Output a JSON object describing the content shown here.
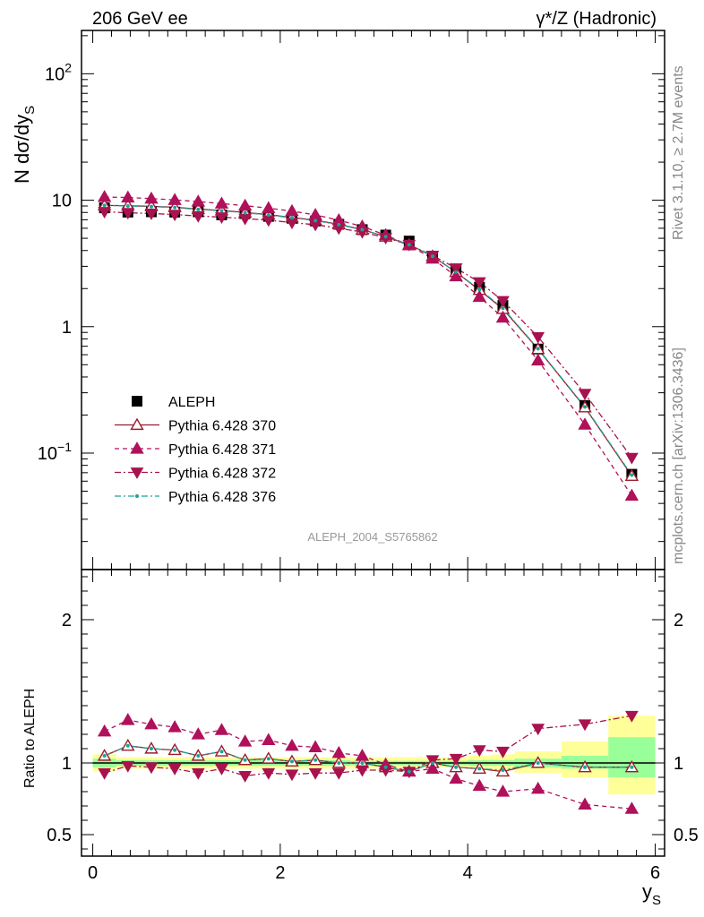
{
  "header": {
    "left": "206 GeV ee",
    "right": "γ*/Z (Hadronic)"
  },
  "side_text": {
    "rivet": "Rivet 3.1.10, ≥ 2.7M events",
    "mcplots": "mcplots.cern.ch [arXiv:1306.3436]"
  },
  "analysis_label": "ALEPH_2004_S5765862",
  "colors": {
    "data": "#000000",
    "p370": "#9b1c2a",
    "p371": "#b0115a",
    "p372": "#a8124e",
    "p376": "#1aa39b",
    "band_inner": "#99ff99",
    "band_outer": "#ffff99"
  },
  "chart_data": [
    {
      "type": "line",
      "panel": "main",
      "ylabel": "N dσ/dy",
      "ylabel_sub": "S",
      "yscale": "log",
      "ylim": [
        0.012,
        220
      ],
      "xlim": [
        -0.12,
        6.1
      ],
      "y_ticks": [
        {
          "value": 100,
          "base": "10",
          "exp": "2"
        },
        {
          "value": 10,
          "base": "10",
          "exp": ""
        },
        {
          "value": 1,
          "base": "1",
          "exp": ""
        },
        {
          "value": 0.1,
          "base": "10",
          "exp": "−1"
        }
      ],
      "legend": [
        "ALEPH",
        "Pythia 6.428 370",
        "Pythia 6.428 371",
        "Pythia 6.428 372",
        "Pythia 6.428 376"
      ],
      "x": [
        0.125,
        0.375,
        0.625,
        0.875,
        1.125,
        1.375,
        1.625,
        1.875,
        2.125,
        2.375,
        2.625,
        2.875,
        3.125,
        3.375,
        3.625,
        3.875,
        4.125,
        4.375,
        4.75,
        5.25,
        5.75
      ],
      "series": [
        {
          "name": "ALEPH",
          "values": [
            8.7,
            8.05,
            8.1,
            8.05,
            8.1,
            7.65,
            7.85,
            7.45,
            7.2,
            6.85,
            6.45,
            5.85,
            5.3,
            4.75,
            3.55,
            2.8,
            2.05,
            1.47,
            0.665,
            0.238,
            0.068
          ]
        },
        {
          "name": "Pythia 6.428 370",
          "values": [
            9.1,
            9.05,
            8.95,
            8.8,
            8.5,
            8.3,
            8.0,
            7.7,
            7.3,
            6.95,
            6.45,
            5.85,
            5.15,
            4.45,
            3.6,
            2.7,
            1.95,
            1.38,
            0.665,
            0.23,
            0.066
          ]
        },
        {
          "name": "Pythia 6.428 371",
          "values": [
            10.6,
            10.5,
            10.3,
            10.05,
            9.75,
            9.4,
            9.05,
            8.65,
            8.2,
            7.65,
            6.95,
            6.2,
            5.3,
            4.4,
            3.45,
            2.5,
            1.72,
            1.18,
            0.54,
            0.168,
            0.046
          ]
        },
        {
          "name": "Pythia 6.428 372",
          "values": [
            8.1,
            7.95,
            7.85,
            7.7,
            7.5,
            7.35,
            7.15,
            6.95,
            6.65,
            6.4,
            6.0,
            5.6,
            5.05,
            4.45,
            3.65,
            2.9,
            2.25,
            1.6,
            0.83,
            0.295,
            0.092
          ]
        },
        {
          "name": "Pythia 6.428 376",
          "values": [
            9.1,
            9.0,
            8.9,
            8.75,
            8.45,
            8.25,
            7.95,
            7.65,
            7.25,
            6.9,
            6.4,
            5.85,
            5.15,
            4.45,
            3.6,
            2.7,
            1.97,
            1.4,
            0.67,
            0.232,
            0.067
          ]
        }
      ]
    },
    {
      "type": "line",
      "panel": "ratio",
      "ylabel": "Ratio to ALEPH",
      "xlabel": "y",
      "xlabel_sub": "S",
      "xlim": [
        -0.12,
        6.1
      ],
      "ylim": [
        0.35,
        2.35
      ],
      "y_ticks": [
        "0.5",
        "1",
        "2"
      ],
      "x_ticks": [
        "0",
        "2",
        "4",
        "6"
      ],
      "bands": [
        {
          "xlo": 0.0,
          "xhi": 0.25,
          "inner": [
            0.97,
            1.03
          ],
          "outer": [
            0.94,
            1.06
          ]
        },
        {
          "xlo": 0.25,
          "xhi": 2.75,
          "inner": [
            0.98,
            1.02
          ],
          "outer": [
            0.96,
            1.04
          ]
        },
        {
          "xlo": 2.75,
          "xhi": 3.5,
          "inner": [
            0.985,
            1.015
          ],
          "outer": [
            0.96,
            1.04
          ]
        },
        {
          "xlo": 3.5,
          "xhi": 4.0,
          "inner": [
            0.985,
            1.015
          ],
          "outer": [
            0.97,
            1.04
          ]
        },
        {
          "xlo": 4.0,
          "xhi": 4.25,
          "inner": [
            0.98,
            1.02
          ],
          "outer": [
            0.96,
            1.05
          ]
        },
        {
          "xlo": 4.25,
          "xhi": 4.5,
          "inner": [
            0.98,
            1.02
          ],
          "outer": [
            0.95,
            1.06
          ]
        },
        {
          "xlo": 4.5,
          "xhi": 5.0,
          "inner": [
            0.97,
            1.03
          ],
          "outer": [
            0.93,
            1.08
          ]
        },
        {
          "xlo": 5.0,
          "xhi": 5.5,
          "inner": [
            0.96,
            1.05
          ],
          "outer": [
            0.9,
            1.15
          ]
        },
        {
          "xlo": 5.5,
          "xhi": 6.0,
          "inner": [
            0.9,
            1.18
          ],
          "outer": [
            0.78,
            1.33
          ]
        }
      ],
      "x": [
        0.125,
        0.375,
        0.625,
        0.875,
        1.125,
        1.375,
        1.625,
        1.875,
        2.125,
        2.375,
        2.625,
        2.875,
        3.125,
        3.375,
        3.625,
        3.875,
        4.125,
        4.375,
        4.75,
        5.25,
        5.75
      ],
      "series": [
        {
          "name": "Pythia 6.428 370",
          "values": [
            1.05,
            1.12,
            1.1,
            1.09,
            1.05,
            1.08,
            1.02,
            1.03,
            1.01,
            1.02,
            1.0,
            1.0,
            0.97,
            0.94,
            1.0,
            0.97,
            0.96,
            0.94,
            1.0,
            0.97,
            0.97
          ]
        },
        {
          "name": "Pythia 6.428 371",
          "values": [
            1.22,
            1.3,
            1.27,
            1.25,
            1.2,
            1.23,
            1.15,
            1.16,
            1.12,
            1.11,
            1.07,
            1.05,
            0.99,
            0.94,
            0.96,
            0.89,
            0.84,
            0.8,
            0.82,
            0.71,
            0.68
          ]
        },
        {
          "name": "Pythia 6.428 372",
          "values": [
            0.93,
            0.98,
            0.97,
            0.96,
            0.93,
            0.96,
            0.91,
            0.93,
            0.92,
            0.93,
            0.93,
            0.95,
            0.95,
            0.94,
            1.02,
            1.03,
            1.09,
            1.08,
            1.24,
            1.27,
            1.33
          ]
        },
        {
          "name": "Pythia 6.428 376",
          "values": [
            1.05,
            1.12,
            1.1,
            1.09,
            1.05,
            1.08,
            1.02,
            1.03,
            1.01,
            1.02,
            1.0,
            1.0,
            0.97,
            0.94,
            1.0,
            0.97,
            0.96,
            0.95,
            1.0,
            0.97,
            0.97
          ]
        }
      ]
    }
  ]
}
